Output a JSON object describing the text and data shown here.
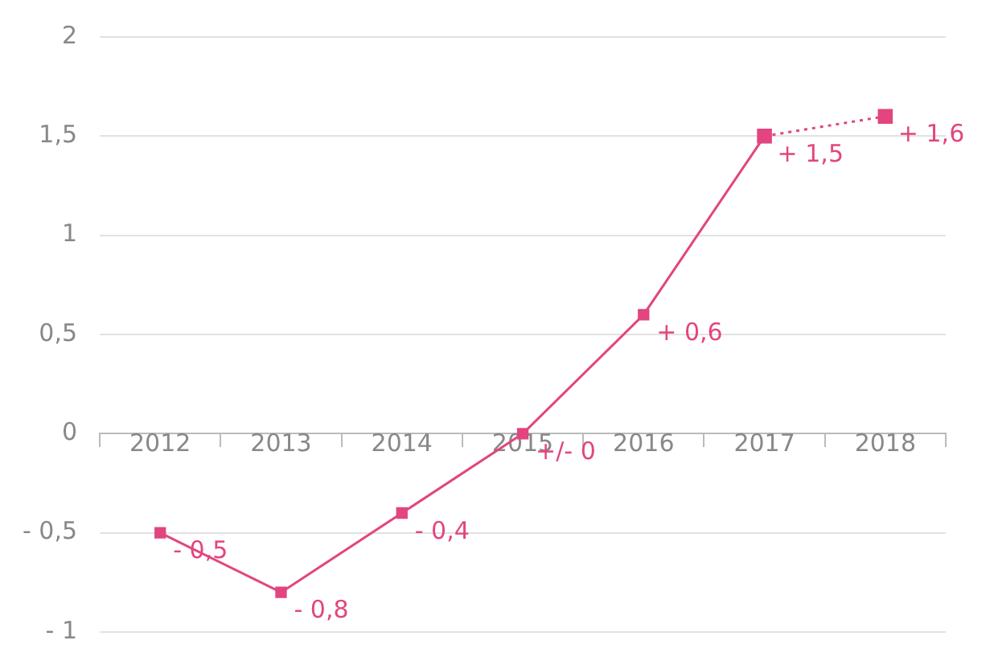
{
  "chart_data": {
    "type": "line",
    "categories": [
      "2012",
      "2013",
      "2014",
      "2015",
      "2016",
      "2017",
      "2018"
    ],
    "series": [
      {
        "color": "#e2457f",
        "line_style": "solid",
        "values": [
          -0.5,
          -0.8,
          -0.4,
          0,
          0.6,
          1.5,
          null
        ],
        "value_labels": [
          "- 0,5",
          "- 0,8",
          "- 0,4",
          "+/- 0",
          "+ 0,6",
          "+ 1,5",
          null
        ]
      },
      {
        "color": "#e2457f",
        "line_style": "dotted",
        "values": [
          null,
          null,
          null,
          null,
          null,
          1.5,
          1.6
        ],
        "value_labels": [
          null,
          null,
          null,
          null,
          null,
          null,
          "+ 1,6"
        ]
      }
    ],
    "ylim": [
      -1,
      2
    ],
    "yticks": [
      2,
      {
        "value": 1.5,
        "label": "1,5"
      },
      1,
      {
        "value": 0.5,
        "label": "0,5"
      },
      0,
      {
        "value": -0.5,
        "label": "- 0,5"
      },
      {
        "value": -1,
        "label": "- 1"
      }
    ],
    "grid": "y",
    "marker": "square",
    "legend": false
  }
}
